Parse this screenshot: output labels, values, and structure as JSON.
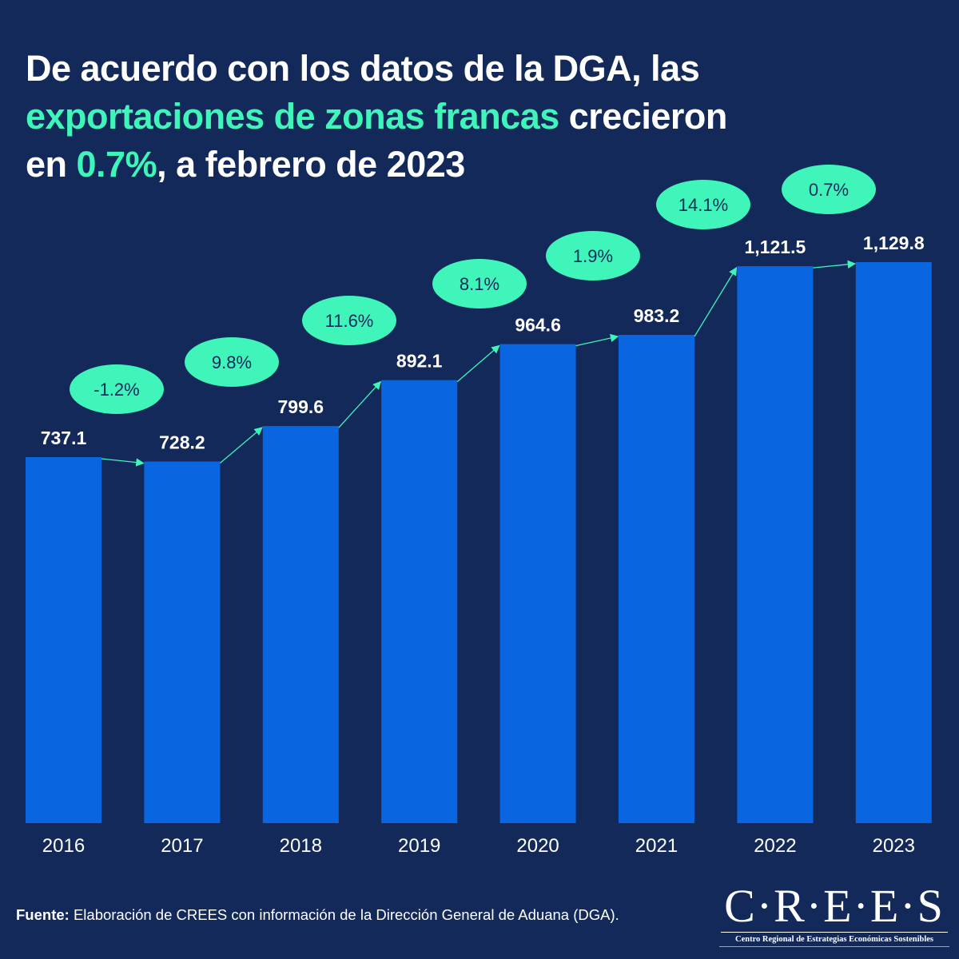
{
  "title": {
    "line1": "De acuerdo con los datos de la DGA, las",
    "line2_highlight": "exportaciones de zonas francas",
    "line2_rest": " crecieron",
    "line3_pre": "en ",
    "line3_highlight": "0.7%",
    "line3_rest": ", a febrero de 2023"
  },
  "colors": {
    "background": "#13295a",
    "bar": "#0a66e0",
    "accent": "#3ff5b9",
    "text": "#ffffff"
  },
  "chart_data": {
    "type": "bar",
    "categories": [
      "2016",
      "2017",
      "2018",
      "2019",
      "2020",
      "2021",
      "2022",
      "2023"
    ],
    "values": [
      737.1,
      728.2,
      799.6,
      892.1,
      964.6,
      983.2,
      1121.5,
      1129.8
    ],
    "value_labels": [
      "737.1",
      "728.2",
      "799.6",
      "892.1",
      "964.6",
      "983.2",
      "1,121.5",
      "1,129.8"
    ],
    "growth_labels": [
      "-1.2%",
      "9.8%",
      "11.6%",
      "8.1%",
      "1.9%",
      "14.1%",
      "0.7%"
    ],
    "ylim": [
      0,
      1130
    ],
    "grid": false,
    "legend": "none"
  },
  "source": {
    "label": "Fuente:",
    "text": " Elaboración de CREES con información de la Dirección General de Aduana (DGA)."
  },
  "logo": {
    "main": "C·R·E·E·S",
    "sub": "Centro Regional de Estrategias Económicas Sostenibles"
  }
}
